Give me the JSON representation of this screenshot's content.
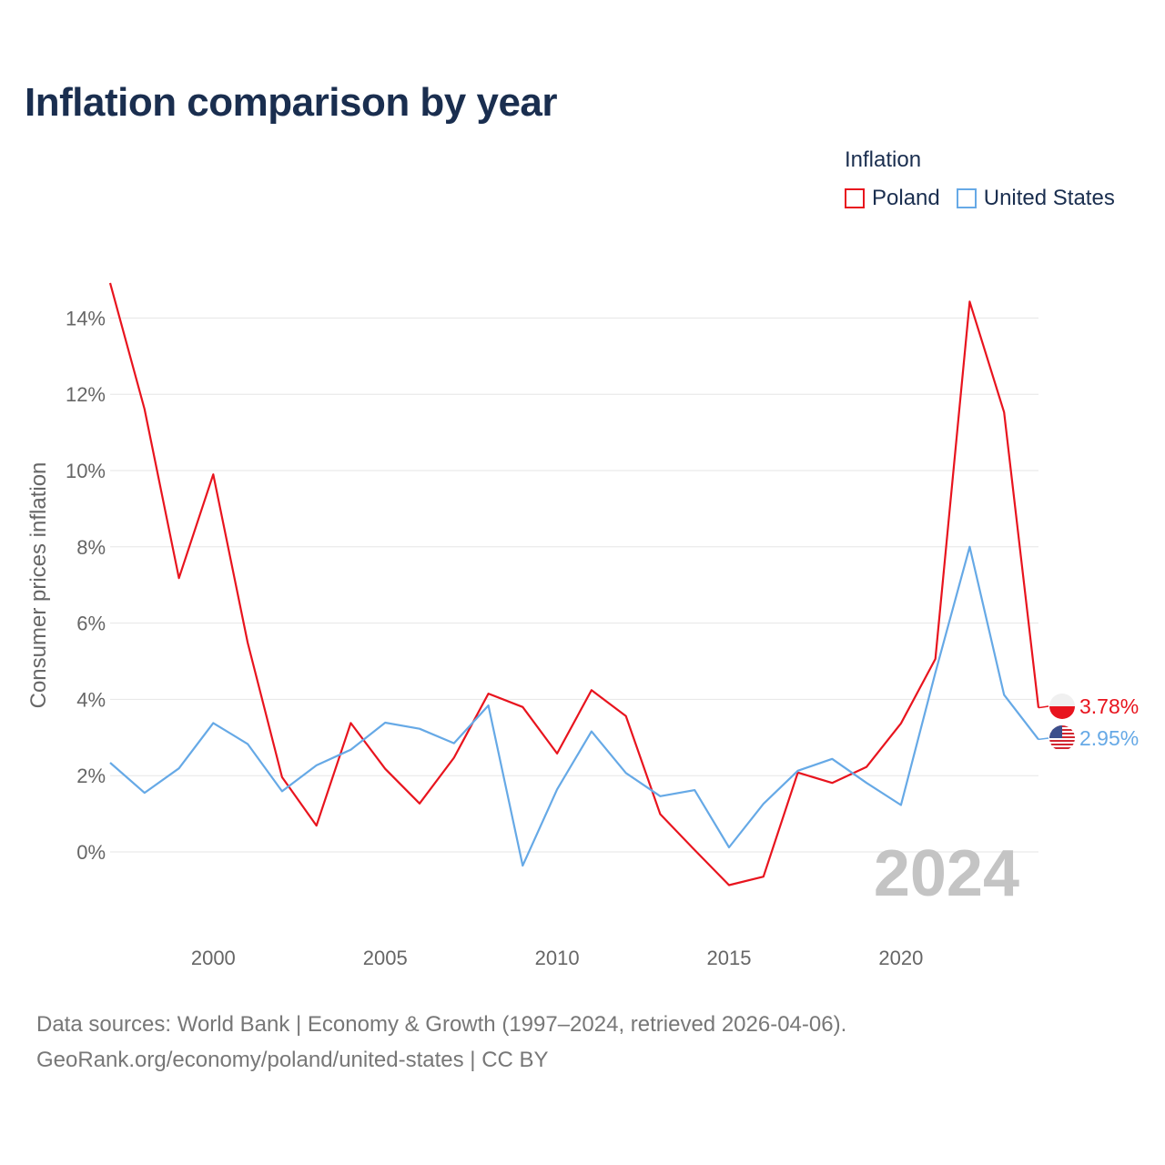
{
  "colors": {
    "poland": "#e8141e",
    "united_states": "#66a9e6",
    "title": "#1a2e4f"
  },
  "chart_data": {
    "type": "line",
    "title": "Inflation comparison by year",
    "xlabel": "",
    "ylabel": "Consumer prices inflation",
    "xlim": [
      1997,
      2024
    ],
    "ylim": [
      -2,
      15
    ],
    "y_ticks": [
      0,
      2,
      4,
      6,
      8,
      10,
      12,
      14
    ],
    "y_tick_labels": [
      "0%",
      "2%",
      "4%",
      "6%",
      "8%",
      "10%",
      "12%",
      "14%"
    ],
    "x_ticks": [
      2000,
      2005,
      2010,
      2015,
      2020
    ],
    "x_tick_labels": [
      "2000",
      "2005",
      "2010",
      "2015",
      "2020"
    ],
    "legend_title": "Inflation",
    "legend_position": "top-right",
    "year_watermark": "2024",
    "x": [
      1997,
      1998,
      1999,
      2000,
      2001,
      2002,
      2003,
      2004,
      2005,
      2006,
      2007,
      2008,
      2009,
      2010,
      2011,
      2012,
      2013,
      2014,
      2015,
      2016,
      2017,
      2018,
      2019,
      2020,
      2021,
      2022,
      2023,
      2024
    ],
    "series": [
      {
        "name": "Poland",
        "color": "#e8141e",
        "values": [
          14.92,
          11.61,
          7.18,
          9.9,
          5.49,
          1.96,
          0.69,
          3.38,
          2.18,
          1.27,
          2.47,
          4.15,
          3.8,
          2.58,
          4.24,
          3.56,
          0.99,
          0.05,
          -0.87,
          -0.65,
          2.08,
          1.81,
          2.23,
          3.37,
          5.06,
          14.43,
          11.53,
          3.78
        ],
        "end_label": "3.78%"
      },
      {
        "name": "United States",
        "color": "#66a9e6",
        "values": [
          2.34,
          1.55,
          2.19,
          3.38,
          2.83,
          1.59,
          2.27,
          2.68,
          3.39,
          3.23,
          2.85,
          3.84,
          -0.36,
          1.64,
          3.16,
          2.07,
          1.46,
          1.62,
          0.12,
          1.26,
          2.13,
          2.44,
          1.81,
          1.23,
          4.7,
          8.0,
          4.12,
          2.95
        ],
        "end_label": "2.95%"
      }
    ]
  },
  "sources": {
    "line1": "Data sources: World Bank | Economy & Growth (1997–2024, retrieved 2026-04-06).",
    "line2": "GeoRank.org/economy/poland/united-states | CC BY"
  }
}
